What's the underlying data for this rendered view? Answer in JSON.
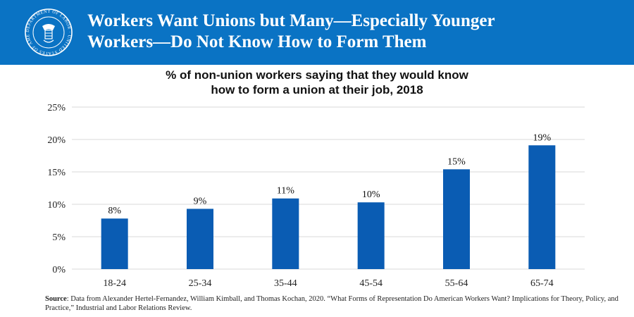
{
  "header": {
    "title_line1": "Workers Want Unions but Many—Especially Younger",
    "title_line2": "Workers—Do Not Know How to Form Them",
    "seal_text": "DEPARTMENT OF LABOR · UNITED STATES OF AMERICA",
    "banner_color": "#0a73c4"
  },
  "chart_data": {
    "type": "bar",
    "title_line1": "% of non-union workers saying that they would know",
    "title_line2": "how to form a union at their job, 2018",
    "categories": [
      "18-24",
      "25-34",
      "35-44",
      "45-54",
      "55-64",
      "65-74"
    ],
    "values": [
      7.8,
      9.3,
      10.9,
      10.3,
      15.4,
      19.1
    ],
    "data_labels": [
      "8%",
      "9%",
      "11%",
      "10%",
      "15%",
      "19%"
    ],
    "y_ticks": [
      "0%",
      "5%",
      "10%",
      "15%",
      "20%",
      "25%"
    ],
    "y_tick_values": [
      0,
      5,
      10,
      15,
      20,
      25
    ],
    "ylim": [
      0,
      25
    ],
    "grid": true,
    "legend": "none",
    "bar_color": "#0a5cb3"
  },
  "footer": {
    "source_label": "Source",
    "source_text": ": Data from Alexander Hertel-Fernandez, William Kimball, and Thomas Kochan, 2020. “What Forms of Representation Do American Workers Want? Implications for Theory, Policy, and Practice,” Industrial and Labor Relations Review."
  }
}
